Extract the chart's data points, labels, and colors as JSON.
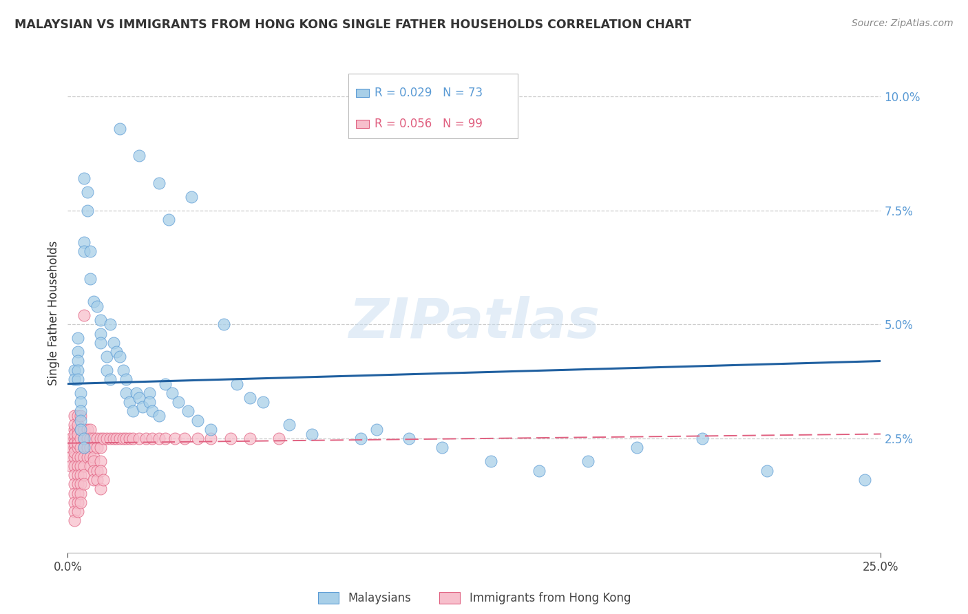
{
  "title": "MALAYSIAN VS IMMIGRANTS FROM HONG KONG SINGLE FATHER HOUSEHOLDS CORRELATION CHART",
  "source": "Source: ZipAtlas.com",
  "ylabel": "Single Father Households",
  "ytick_labels": [
    "",
    "2.5%",
    "5.0%",
    "7.5%",
    "10.0%"
  ],
  "yticks": [
    0.0,
    0.025,
    0.05,
    0.075,
    0.1
  ],
  "xlim": [
    0.0,
    0.25
  ],
  "ylim": [
    0.0,
    0.105
  ],
  "legend_r_blue": "R = 0.029",
  "legend_n_blue": "N = 73",
  "legend_r_pink": "R = 0.056",
  "legend_n_pink": "N = 99",
  "blue_color": "#a8cfe8",
  "blue_edge": "#5b9bd5",
  "pink_color": "#f7bfcc",
  "pink_edge": "#e06080",
  "line_blue": "#2060a0",
  "line_pink": "#e06080",
  "watermark_text": "ZIPatlas",
  "malaysians_label": "Malaysians",
  "hk_label": "Immigrants from Hong Kong",
  "blue_x": [
    0.016,
    0.022,
    0.028,
    0.038,
    0.031,
    0.005,
    0.005,
    0.005,
    0.006,
    0.006,
    0.007,
    0.007,
    0.008,
    0.009,
    0.01,
    0.01,
    0.01,
    0.012,
    0.012,
    0.013,
    0.013,
    0.014,
    0.015,
    0.016,
    0.017,
    0.018,
    0.018,
    0.019,
    0.02,
    0.021,
    0.022,
    0.023,
    0.025,
    0.025,
    0.026,
    0.028,
    0.03,
    0.032,
    0.034,
    0.037,
    0.04,
    0.044,
    0.048,
    0.052,
    0.056,
    0.06,
    0.068,
    0.075,
    0.09,
    0.095,
    0.105,
    0.115,
    0.13,
    0.145,
    0.16,
    0.175,
    0.195,
    0.215,
    0.245,
    0.002,
    0.002,
    0.003,
    0.003,
    0.003,
    0.003,
    0.003,
    0.004,
    0.004,
    0.004,
    0.004,
    0.004,
    0.005,
    0.005
  ],
  "blue_y": [
    0.093,
    0.087,
    0.081,
    0.078,
    0.073,
    0.068,
    0.066,
    0.082,
    0.079,
    0.075,
    0.066,
    0.06,
    0.055,
    0.054,
    0.051,
    0.048,
    0.046,
    0.043,
    0.04,
    0.038,
    0.05,
    0.046,
    0.044,
    0.043,
    0.04,
    0.038,
    0.035,
    0.033,
    0.031,
    0.035,
    0.034,
    0.032,
    0.035,
    0.033,
    0.031,
    0.03,
    0.037,
    0.035,
    0.033,
    0.031,
    0.029,
    0.027,
    0.05,
    0.037,
    0.034,
    0.033,
    0.028,
    0.026,
    0.025,
    0.027,
    0.025,
    0.023,
    0.02,
    0.018,
    0.02,
    0.023,
    0.025,
    0.018,
    0.016,
    0.04,
    0.038,
    0.047,
    0.044,
    0.042,
    0.04,
    0.038,
    0.035,
    0.033,
    0.031,
    0.029,
    0.027,
    0.025,
    0.023
  ],
  "pink_x": [
    0.001,
    0.001,
    0.001,
    0.001,
    0.002,
    0.002,
    0.002,
    0.002,
    0.002,
    0.002,
    0.002,
    0.002,
    0.002,
    0.002,
    0.002,
    0.002,
    0.002,
    0.002,
    0.002,
    0.002,
    0.003,
    0.003,
    0.003,
    0.003,
    0.003,
    0.003,
    0.003,
    0.003,
    0.003,
    0.003,
    0.003,
    0.003,
    0.003,
    0.003,
    0.004,
    0.004,
    0.004,
    0.004,
    0.004,
    0.004,
    0.004,
    0.004,
    0.004,
    0.004,
    0.005,
    0.005,
    0.005,
    0.005,
    0.005,
    0.005,
    0.005,
    0.005,
    0.006,
    0.006,
    0.006,
    0.006,
    0.007,
    0.007,
    0.007,
    0.007,
    0.007,
    0.008,
    0.008,
    0.008,
    0.009,
    0.009,
    0.01,
    0.01,
    0.011,
    0.012,
    0.013,
    0.014,
    0.015,
    0.016,
    0.017,
    0.018,
    0.019,
    0.02,
    0.022,
    0.024,
    0.026,
    0.028,
    0.03,
    0.033,
    0.036,
    0.04,
    0.044,
    0.05,
    0.056,
    0.065,
    0.008,
    0.008,
    0.008,
    0.009,
    0.009,
    0.01,
    0.01,
    0.01,
    0.011
  ],
  "pink_y": [
    0.025,
    0.023,
    0.021,
    0.019,
    0.027,
    0.025,
    0.023,
    0.021,
    0.019,
    0.017,
    0.015,
    0.013,
    0.011,
    0.009,
    0.007,
    0.03,
    0.028,
    0.026,
    0.024,
    0.022,
    0.027,
    0.025,
    0.023,
    0.021,
    0.019,
    0.017,
    0.015,
    0.013,
    0.011,
    0.009,
    0.03,
    0.028,
    0.026,
    0.024,
    0.027,
    0.025,
    0.023,
    0.021,
    0.019,
    0.017,
    0.015,
    0.013,
    0.011,
    0.03,
    0.027,
    0.025,
    0.023,
    0.021,
    0.019,
    0.017,
    0.015,
    0.052,
    0.027,
    0.025,
    0.023,
    0.021,
    0.027,
    0.025,
    0.023,
    0.021,
    0.019,
    0.025,
    0.023,
    0.021,
    0.025,
    0.023,
    0.025,
    0.023,
    0.025,
    0.025,
    0.025,
    0.025,
    0.025,
    0.025,
    0.025,
    0.025,
    0.025,
    0.025,
    0.025,
    0.025,
    0.025,
    0.025,
    0.025,
    0.025,
    0.025,
    0.025,
    0.025,
    0.025,
    0.025,
    0.025,
    0.02,
    0.018,
    0.016,
    0.018,
    0.016,
    0.014,
    0.02,
    0.018,
    0.016
  ],
  "blue_trendline_x": [
    0.0,
    0.25
  ],
  "blue_trendline_y": [
    0.037,
    0.042
  ],
  "pink_trendline_x": [
    0.0,
    0.25
  ],
  "pink_trendline_y": [
    0.024,
    0.026
  ]
}
